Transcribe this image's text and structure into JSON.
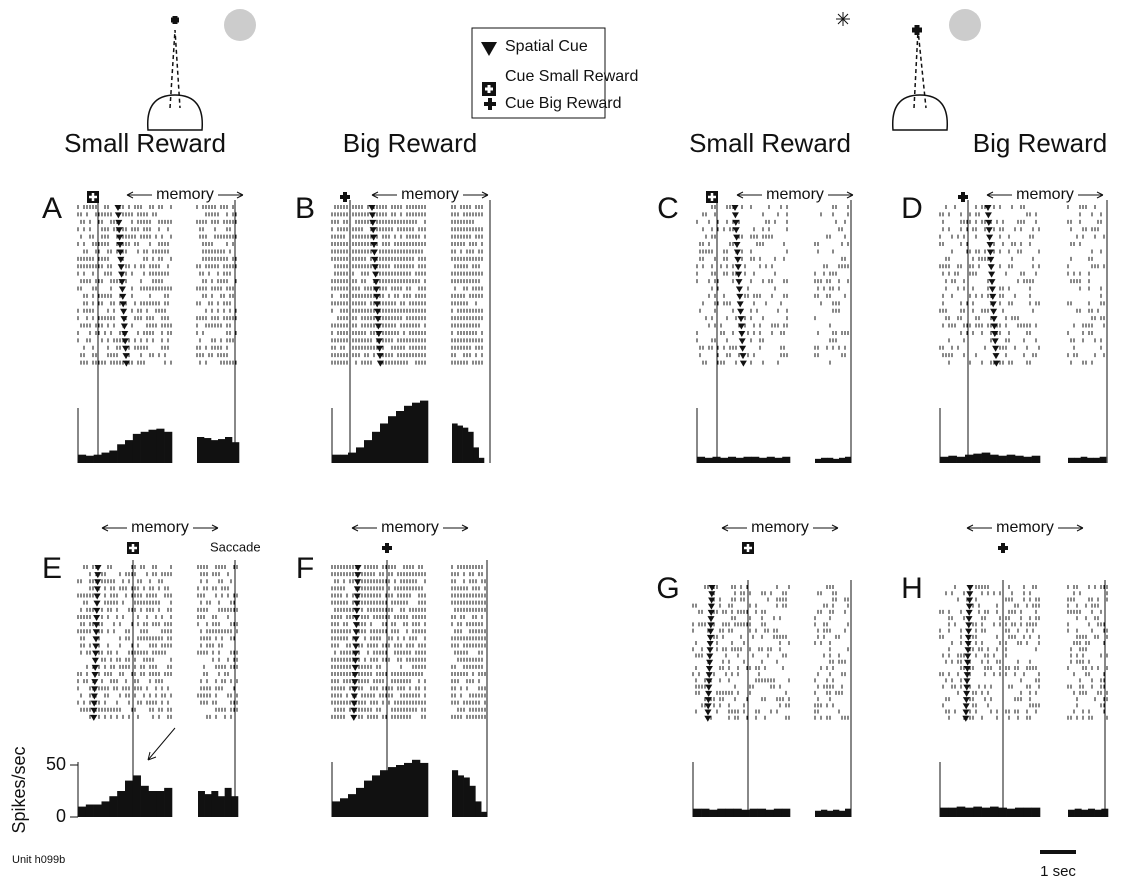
{
  "legend": {
    "items": [
      "Spatial Cue",
      "Cue Small Reward",
      "Cue Big Reward"
    ]
  },
  "column_titles": [
    "Small Reward",
    "Big Reward",
    "Small Reward",
    "Big Reward"
  ],
  "memory_label": "memory",
  "saccade_label": "Saccade",
  "unit_label": "Unit h099b",
  "scale_bar_label": "1 sec",
  "histogram": {
    "ylabel": "Spikes/sec",
    "ylim": [
      0,
      50
    ],
    "yticks": [
      0,
      50
    ]
  },
  "panels": [
    {
      "letter": "A",
      "cue_hist": [
        8,
        7,
        8,
        10,
        12,
        18,
        22,
        28,
        30,
        32,
        33,
        30
      ],
      "saccade_hist": [
        25,
        24,
        22,
        23,
        25,
        20
      ]
    },
    {
      "letter": "B",
      "cue_hist": [
        8,
        8,
        10,
        15,
        22,
        30,
        38,
        45,
        50,
        55,
        58,
        60
      ],
      "saccade_hist": [
        38,
        36,
        34,
        30,
        15,
        5
      ]
    },
    {
      "letter": "C",
      "cue_hist": [
        6,
        5,
        6,
        5,
        6,
        5,
        6,
        6,
        5,
        6,
        5,
        6
      ],
      "saccade_hist": [
        4,
        5,
        5,
        4,
        5,
        6
      ]
    },
    {
      "letter": "D",
      "cue_hist": [
        6,
        7,
        6,
        8,
        9,
        10,
        8,
        7,
        8,
        7,
        6,
        7
      ],
      "saccade_hist": [
        5,
        5,
        6,
        5,
        5,
        6
      ]
    },
    {
      "letter": "E",
      "cue_hist": [
        10,
        12,
        12,
        15,
        20,
        25,
        35,
        40,
        30,
        25,
        25,
        28
      ],
      "saccade_hist": [
        25,
        22,
        25,
        20,
        28,
        20
      ]
    },
    {
      "letter": "F",
      "cue_hist": [
        15,
        18,
        22,
        28,
        35,
        40,
        45,
        48,
        50,
        52,
        55,
        52
      ],
      "saccade_hist": [
        45,
        40,
        38,
        30,
        15,
        5
      ]
    },
    {
      "letter": "G",
      "cue_hist": [
        8,
        8,
        7,
        8,
        8,
        8,
        7,
        8,
        8,
        7,
        8,
        8
      ],
      "saccade_hist": [
        6,
        7,
        6,
        7,
        6,
        8
      ]
    },
    {
      "letter": "H",
      "cue_hist": [
        9,
        9,
        10,
        9,
        10,
        9,
        10,
        9,
        8,
        9,
        9,
        9
      ],
      "saccade_hist": [
        7,
        8,
        7,
        8,
        7,
        8
      ]
    }
  ]
}
